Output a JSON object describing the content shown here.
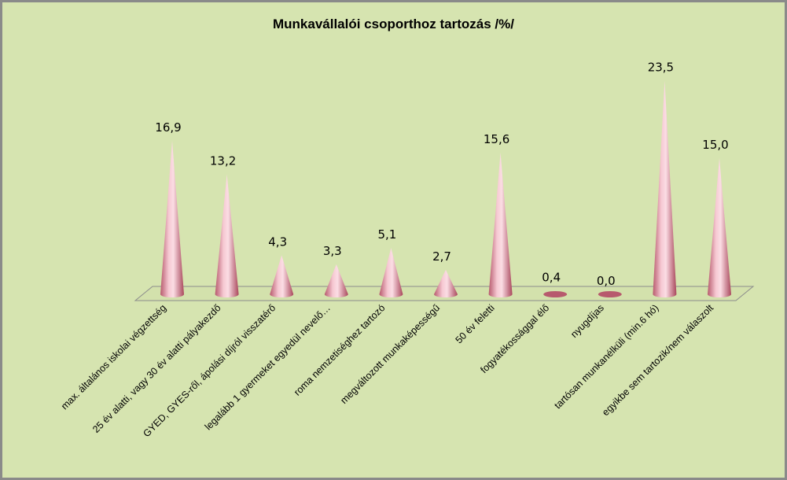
{
  "chart_data": {
    "type": "bar",
    "bar_shape": "cone",
    "title": "Munkavállalói csoporthoz tartozás /%/",
    "categories": [
      "max. általános iskolai végzettség",
      "25 év alatti,  vagy 30 év alatti pályakezdő",
      "GYED, GYES-ről, ápolási díjról visszatérő",
      "legalább 1 gyermeket egyedül nevelő…",
      "roma nemzetiséghez tartozó",
      "megváltozott munkaképességű",
      "50 év feletti",
      "fogyatékossággal élő",
      "nyugdíjas",
      "tartósan munkanélküli (min.6 hó)",
      "egyikbe sem tartozik/nem válaszolt"
    ],
    "values": [
      16.9,
      13.2,
      4.3,
      3.3,
      5.1,
      2.7,
      15.6,
      0.4,
      0.0,
      23.5,
      15.0
    ],
    "labels": [
      "16,9",
      "13,2",
      "4,3",
      "3,3",
      "5,1",
      "2,7",
      "15,6",
      "0,4",
      "0,0",
      "23,5",
      "15,0"
    ],
    "ylim": [
      0,
      25
    ],
    "xlabel": "",
    "ylabel": "",
    "legend": "none",
    "colors": {
      "background": "#d6e4b0",
      "bar_light": "#fbdde4",
      "bar_mid": "#e8a0ae",
      "bar_dark": "#b75a6d",
      "floor": "#d3e1ac"
    }
  }
}
